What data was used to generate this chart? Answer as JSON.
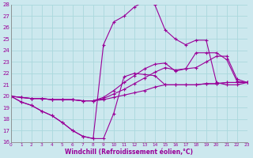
{
  "title": "",
  "xlabel": "Windchill (Refroidissement éolien,°C)",
  "ylabel": "",
  "bg_color": "#cce8ee",
  "line_color": "#990099",
  "grid_color": "#aad8dd",
  "xlim": [
    0,
    23
  ],
  "ylim": [
    16,
    28
  ],
  "yticks": [
    16,
    17,
    18,
    19,
    20,
    21,
    22,
    23,
    24,
    25,
    26,
    27,
    28
  ],
  "xticks": [
    0,
    1,
    2,
    3,
    4,
    5,
    6,
    7,
    8,
    9,
    10,
    11,
    12,
    13,
    14,
    15,
    16,
    17,
    18,
    19,
    20,
    21,
    22,
    23
  ],
  "lines": [
    [
      20.0,
      19.5,
      19.2,
      18.7,
      18.3,
      17.7,
      17.0,
      16.5,
      16.3,
      16.3,
      18.5,
      21.7,
      22.0,
      21.9,
      21.8,
      21.0,
      21.0,
      21.0,
      21.0,
      21.1,
      21.1,
      21.2,
      21.2,
      21.2
    ],
    [
      20.0,
      19.9,
      19.8,
      19.8,
      19.7,
      19.7,
      19.7,
      19.6,
      19.6,
      19.7,
      19.9,
      20.1,
      20.3,
      20.5,
      20.8,
      21.0,
      21.0,
      21.0,
      21.0,
      21.1,
      21.1,
      21.2,
      21.2,
      21.2
    ],
    [
      20.0,
      19.9,
      19.8,
      19.8,
      19.7,
      19.7,
      19.7,
      19.6,
      19.6,
      19.8,
      20.2,
      20.6,
      21.1,
      21.6,
      22.1,
      22.5,
      22.3,
      22.4,
      23.8,
      23.8,
      23.8,
      23.2,
      21.3,
      21.2
    ],
    [
      20.0,
      19.9,
      19.8,
      19.8,
      19.7,
      19.7,
      19.7,
      19.6,
      19.6,
      19.9,
      20.5,
      21.2,
      21.8,
      22.4,
      22.8,
      22.9,
      22.2,
      22.4,
      22.5,
      23.0,
      23.5,
      23.5,
      21.5,
      21.2
    ],
    [
      20.0,
      19.5,
      19.2,
      18.7,
      18.3,
      17.7,
      17.0,
      16.5,
      16.3,
      24.5,
      26.5,
      27.0,
      27.8,
      28.3,
      28.0,
      25.8,
      25.0,
      24.5,
      24.9,
      24.9,
      21.2,
      21.0,
      21.0,
      21.2
    ]
  ]
}
